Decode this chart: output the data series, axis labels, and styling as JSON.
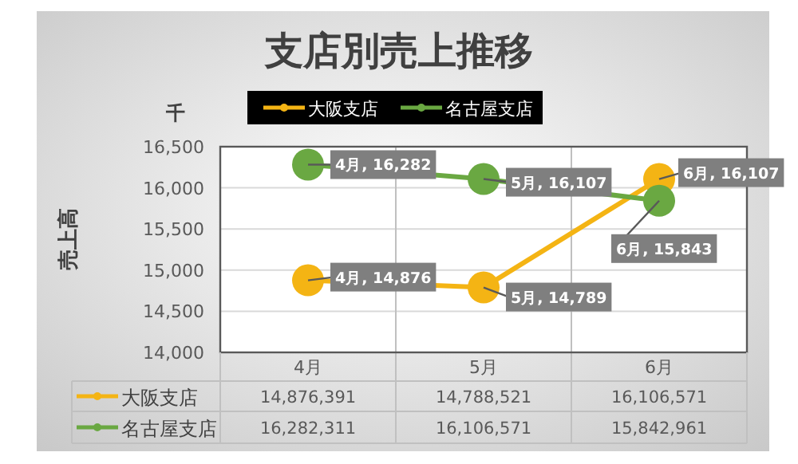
{
  "chart_data": {
    "type": "line",
    "title": "支店別売上推移",
    "ylabel": "売上高",
    "annotations": [
      "千",
      "14,876,391",
      "14,788,521",
      "16,106,571",
      "16,282,311",
      "16,106,571",
      "15,842,961"
    ],
    "categories": [
      "4月",
      "5月",
      "6月"
    ],
    "series": [
      {
        "name": "大阪支店",
        "color": "#f4b414",
        "values": [
          14876,
          14789,
          16107
        ],
        "value_labels": [
          "4月, 14,876",
          "5月, 14,789",
          "6月, 16,107"
        ]
      },
      {
        "name": "名古屋支店",
        "color": "#6aa842",
        "values": [
          16282,
          16107,
          15843
        ],
        "value_labels": [
          "4月, 16,282",
          "5月, 16,107",
          "6月, 15,843"
        ]
      }
    ],
    "ylim": [
      14000,
      16500
    ],
    "yticks": [
      {
        "value": 14000,
        "label": "14,000"
      },
      {
        "value": 14500,
        "label": "14,500"
      },
      {
        "value": 15000,
        "label": "15,000"
      },
      {
        "value": 15500,
        "label": "15,500"
      },
      {
        "value": 16000,
        "label": "16,000"
      },
      {
        "value": 16500,
        "label": "16,500"
      }
    ],
    "grid": "y",
    "legend": "top",
    "marker": "circle"
  }
}
